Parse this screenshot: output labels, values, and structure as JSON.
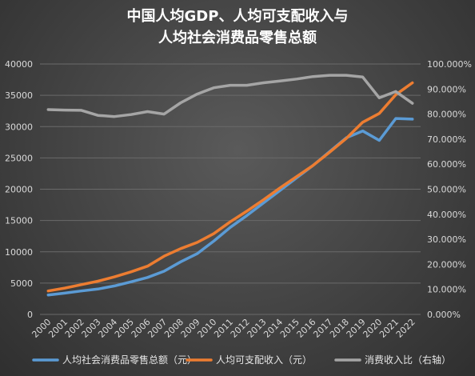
{
  "chart_data": {
    "type": "line",
    "title_lines": [
      "中国人均GDP、人均可支配收入与",
      "人均社会消费品零售总额"
    ],
    "x": [
      "2000",
      "2001",
      "2002",
      "2003",
      "2004",
      "2005",
      "2006",
      "2007",
      "2008",
      "2009",
      "2010",
      "2011",
      "2012",
      "2013",
      "2014",
      "2015",
      "2016",
      "2017",
      "2018",
      "2019",
      "2020",
      "2021",
      "2022"
    ],
    "ylim_left": [
      0,
      40000
    ],
    "yticks_left": [
      0,
      5000,
      10000,
      15000,
      20000,
      25000,
      30000,
      35000,
      40000
    ],
    "ytick_labels_left": [
      "0",
      "5000",
      "10000",
      "15000",
      "20000",
      "25000",
      "30000",
      "35000",
      "40000"
    ],
    "ylim_right": [
      0,
      100
    ],
    "yticks_right": [
      0,
      10,
      20,
      30,
      40,
      50,
      60,
      70,
      80,
      90,
      100
    ],
    "ytick_labels_right": [
      "0.000%",
      "10.000%",
      "20.000%",
      "30.000%",
      "40.000%",
      "50.000%",
      "60.000%",
      "70.000%",
      "80.000%",
      "90.000%",
      "100.000%"
    ],
    "grid": true,
    "legend_position": "bottom",
    "series": [
      {
        "name": "人均社会消费品零售总额（元）",
        "color": "#5b9bd5",
        "axis": "left",
        "values": [
          3100,
          3400,
          3750,
          4050,
          4550,
          5200,
          5900,
          6900,
          8400,
          9700,
          11700,
          13900,
          15800,
          17800,
          19800,
          21800,
          23800,
          26000,
          28200,
          29300,
          27800,
          31300,
          31200
        ]
      },
      {
        "name": "人均可支配收入（元）",
        "color": "#ed7d31",
        "axis": "left",
        "values": [
          3750,
          4200,
          4750,
          5300,
          6000,
          6800,
          7700,
          9300,
          10500,
          11500,
          12900,
          14800,
          16500,
          18300,
          20200,
          22000,
          23800,
          25900,
          28100,
          30700,
          32100,
          35100,
          37000
        ]
      },
      {
        "name": "消费收入比（右轴）",
        "color": "#a5a5a5",
        "axis": "right",
        "values": [
          81.8,
          81.6,
          81.5,
          79.5,
          79.0,
          79.8,
          81.0,
          80.0,
          84.5,
          88.0,
          90.5,
          91.5,
          91.5,
          92.5,
          93.2,
          94.0,
          95.0,
          95.5,
          95.5,
          94.8,
          86.5,
          89.0,
          84.3
        ]
      }
    ]
  }
}
